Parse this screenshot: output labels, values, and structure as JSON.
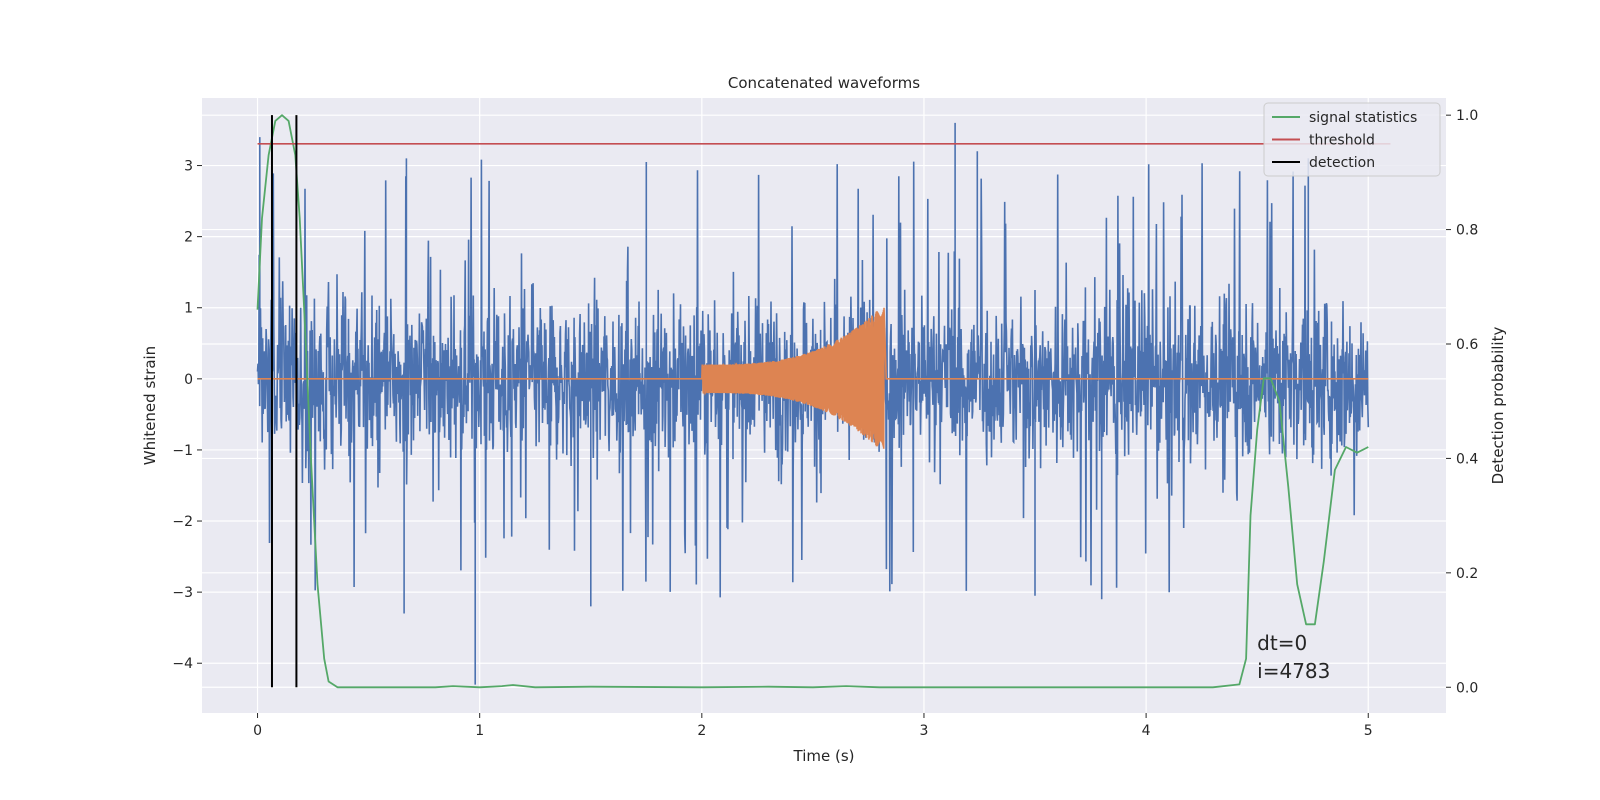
{
  "chart_data": {
    "type": "line",
    "title": "Concatenated waveforms",
    "xlabel": "Time (s)",
    "ylabel_left": "Whitened strain",
    "ylabel_right": "Detection probability",
    "xlim": [
      -0.25,
      5.35
    ],
    "ylim_left": [
      -4.7,
      3.95
    ],
    "ylim_right": [
      -0.045,
      1.03
    ],
    "x_ticks": [
      0,
      1,
      2,
      3,
      4,
      5
    ],
    "y_ticks_left": [
      3,
      2,
      1,
      0,
      -1,
      -2,
      -3,
      -4
    ],
    "y_ticks_right": [
      1.0,
      0.8,
      0.6,
      0.4,
      0.2,
      0.0
    ],
    "grid": true,
    "legend_position": "top-right",
    "legend": [
      {
        "label": "signal statistics",
        "color": "#55a868"
      },
      {
        "label": "threshold",
        "color": "#c44e52"
      },
      {
        "label": "detection",
        "color": "#000000"
      }
    ],
    "annotation": {
      "line1": "dt=0",
      "line2": "i=4783",
      "x": 4.5,
      "y_prob": 0.1
    },
    "series": [
      {
        "name": "whitened strain (noise)",
        "axis": "left",
        "color": "#4c72b0",
        "x_range": [
          0,
          5
        ],
        "envelope_typical": 1.4,
        "envelope_peak": 3.6,
        "lowest_value": -4.3
      },
      {
        "name": "injected chirp",
        "axis": "left",
        "color": "#dd8452",
        "x_start": 2.0,
        "x_end": 2.82,
        "amplitude_start": 0.2,
        "amplitude_end": 1.05
      },
      {
        "name": "signal statistics",
        "axis": "right",
        "color": "#55a868",
        "x": [
          0.0,
          0.02,
          0.05,
          0.08,
          0.11,
          0.14,
          0.17,
          0.19,
          0.21,
          0.24,
          0.27,
          0.3,
          0.32,
          0.36,
          0.5,
          0.8,
          0.88,
          1.0,
          1.1,
          1.15,
          1.25,
          1.5,
          2.0,
          2.3,
          2.5,
          2.65,
          2.8,
          3.0,
          3.5,
          4.0,
          4.3,
          4.42,
          4.45,
          4.47,
          4.5,
          4.53,
          4.56,
          4.6,
          4.64,
          4.68,
          4.72,
          4.76,
          4.8,
          4.85,
          4.9,
          4.95,
          5.0
        ],
        "y": [
          0.66,
          0.82,
          0.93,
          0.99,
          1.0,
          0.99,
          0.93,
          0.82,
          0.66,
          0.4,
          0.18,
          0.05,
          0.01,
          0.0,
          0.0,
          0.0,
          0.002,
          0.0,
          0.002,
          0.004,
          0.0,
          0.001,
          0.0,
          0.001,
          0.0,
          0.002,
          0.0,
          0.0,
          0.0,
          0.0,
          0.0,
          0.005,
          0.05,
          0.3,
          0.45,
          0.54,
          0.54,
          0.5,
          0.35,
          0.18,
          0.11,
          0.11,
          0.22,
          0.38,
          0.42,
          0.41,
          0.42
        ]
      },
      {
        "name": "threshold",
        "axis": "right",
        "color": "#c44e52",
        "x": [
          0,
          5.1
        ],
        "y": [
          0.95,
          0.95
        ]
      },
      {
        "name": "detection",
        "axis": "right",
        "color": "#000000",
        "x": [
          0.065,
          0.175
        ],
        "y_range": [
          0.0,
          1.0
        ]
      }
    ]
  }
}
